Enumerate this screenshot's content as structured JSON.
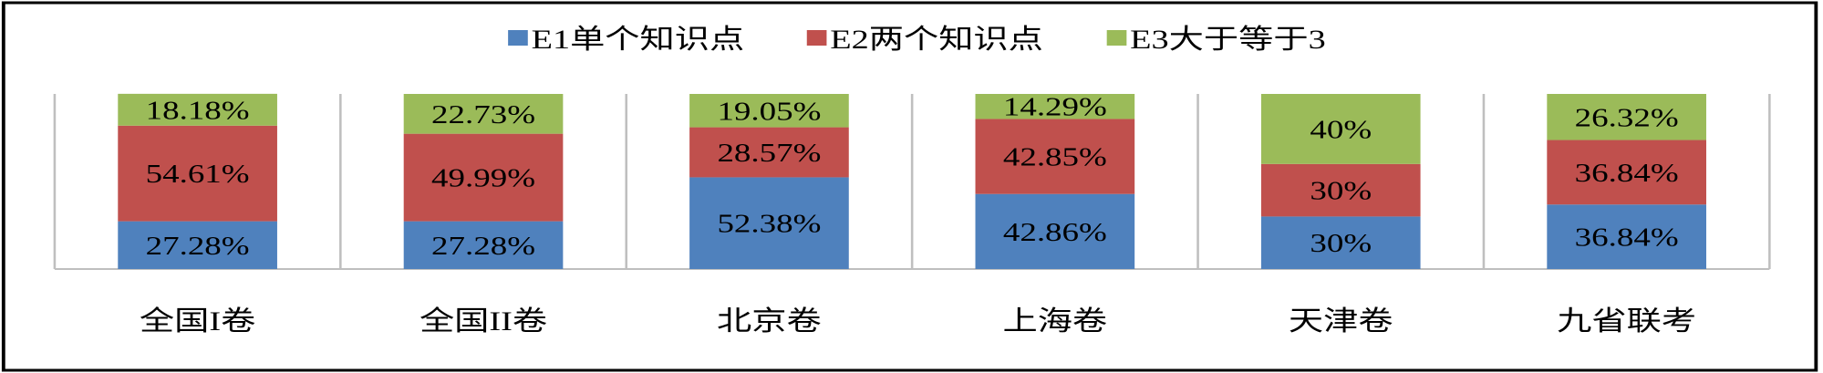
{
  "chart_data": {
    "type": "stacked-bar-100",
    "categories": [
      "全国I卷",
      "全国II卷",
      "北京卷",
      "上海卷",
      "天津卷",
      "九省联考"
    ],
    "series": [
      {
        "name": "E1单个知识点",
        "color": "#4F81BD",
        "values": [
          27.28,
          27.28,
          52.38,
          42.86,
          30,
          36.84
        ],
        "labels": [
          "27.28%",
          "27.28%",
          "52.38%",
          "42.86%",
          "30%",
          "36.84%"
        ]
      },
      {
        "name": "E2两个知识点",
        "color": "#C0504D",
        "values": [
          54.61,
          49.99,
          28.57,
          42.85,
          30,
          36.84
        ],
        "labels": [
          "54.61%",
          "49.99%",
          "28.57%",
          "42.85%",
          "30%",
          "36.84%"
        ]
      },
      {
        "name": "E3大于等于3",
        "color": "#9BBB59",
        "values": [
          18.18,
          22.73,
          19.05,
          14.29,
          40,
          26.32
        ],
        "labels": [
          "18.18%",
          "22.73%",
          "19.05%",
          "14.29%",
          "40%",
          "26.32%"
        ]
      }
    ],
    "ylim": [
      0,
      100
    ],
    "legend": "top",
    "grid": false
  }
}
